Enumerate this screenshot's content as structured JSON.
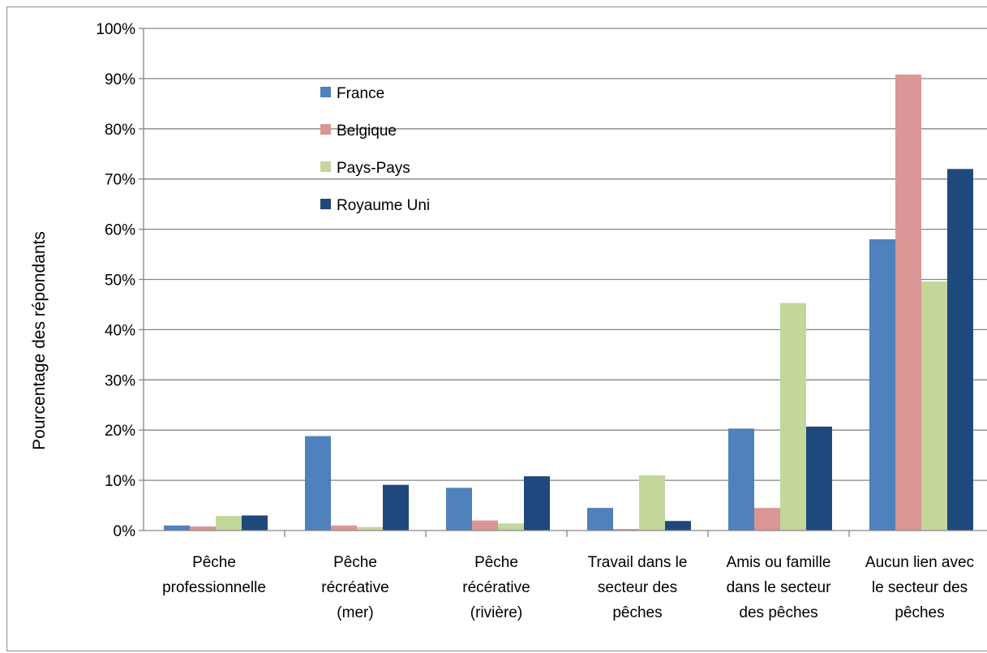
{
  "chart_data": {
    "type": "bar",
    "title": "",
    "xlabel": "",
    "ylabel": "Pourcentage des  répondants",
    "ylim": [
      0,
      100
    ],
    "yticks": [
      "0%",
      "10%",
      "20%",
      "30%",
      "40%",
      "50%",
      "60%",
      "70%",
      "80%",
      "90%",
      "100%"
    ],
    "grid": true,
    "legend_position": "top-left inside plot",
    "categories": [
      [
        "Pêche",
        "professionnelle"
      ],
      [
        "Pêche",
        "récréative",
        "(mer)"
      ],
      [
        "Pêche",
        "récérative",
        "(rivière)"
      ],
      [
        "Travail dans le",
        "secteur des",
        "pêches"
      ],
      [
        "Amis ou famille",
        "dans le secteur",
        "des pêches"
      ],
      [
        "Aucun lien avec",
        "le secteur des",
        "pêches"
      ]
    ],
    "series": [
      {
        "name": "France",
        "color": "#4f81bd",
        "values": [
          1,
          18.8,
          8.5,
          4.5,
          20.3,
          58
        ]
      },
      {
        "name": "Belgique",
        "color": "#d99694",
        "values": [
          0.8,
          1,
          2,
          0.3,
          4.5,
          90.8
        ]
      },
      {
        "name": "Pays-Pays",
        "color": "#c3d69b",
        "values": [
          2.9,
          0.7,
          1.4,
          11,
          45.3,
          49.6
        ]
      },
      {
        "name": "Royaume Uni",
        "color": "#1f497d",
        "values": [
          3,
          9.1,
          10.8,
          1.9,
          20.7,
          72
        ]
      }
    ]
  }
}
